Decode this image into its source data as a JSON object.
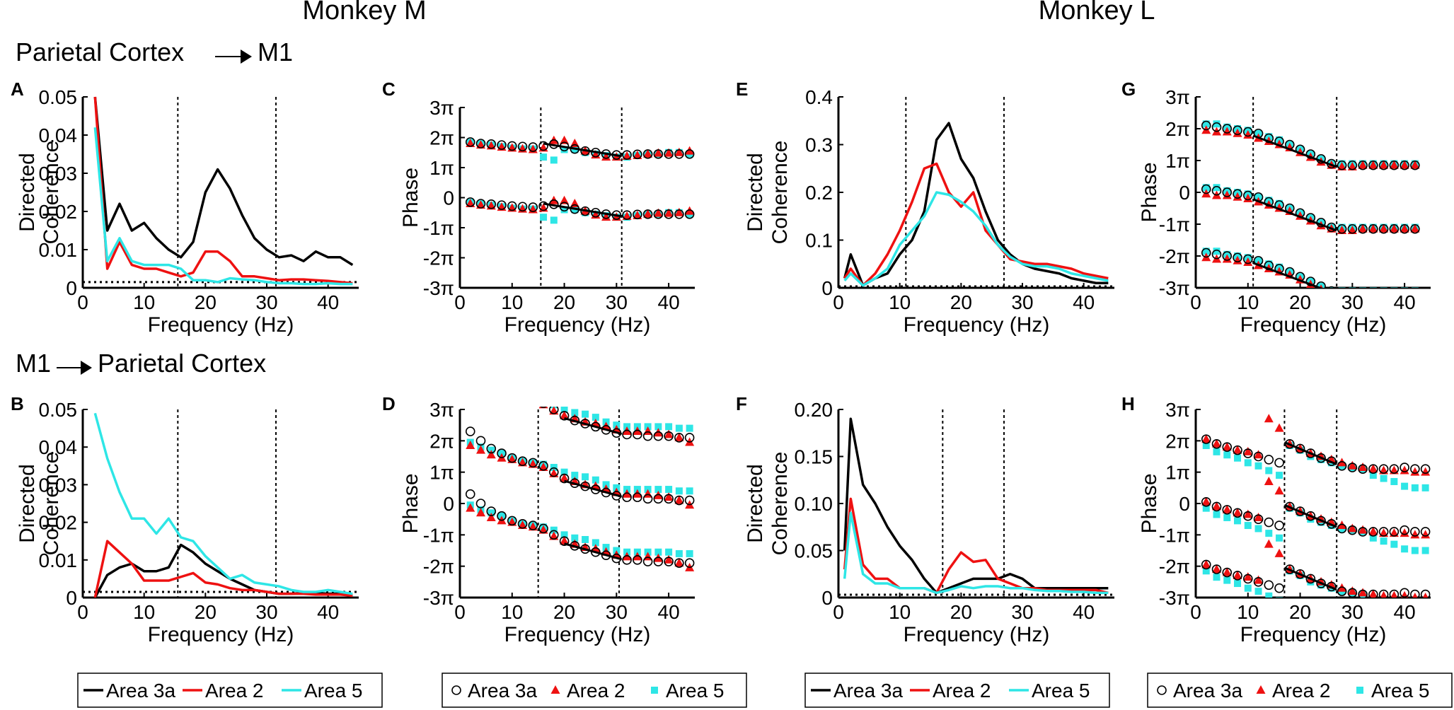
{
  "header": {
    "monkey_m": "Monkey M",
    "monkey_l": "Monkey L",
    "row1": "Parietal Cortex",
    "row1_target": "M1",
    "row2_source": "M1",
    "row2": "Parietal Cortex"
  },
  "colors": {
    "area3a": "#000000",
    "area2": "#ee1111",
    "area5": "#2ee6e6"
  },
  "legends": {
    "lines": [
      "Area 3a",
      "Area 2",
      "Area 5"
    ],
    "markers": [
      "Area 3a",
      "Area 2",
      "Area 5"
    ]
  },
  "chart_data": [
    {
      "id": "A",
      "type": "line",
      "xlabel": "Frequency (Hz)",
      "ylabel": [
        "Directed",
        "Coherence"
      ],
      "xlim": [
        0,
        45
      ],
      "ylim": [
        0,
        0.05
      ],
      "xticks": [
        0,
        10,
        20,
        30,
        40
      ],
      "xtick_labels": [
        "0",
        "10",
        "20",
        "30",
        "40"
      ],
      "yticks": [
        0,
        0.01,
        0.02,
        0.03,
        0.04,
        0.05
      ],
      "ytick_labels": [
        "0",
        "0.01",
        "0.02",
        "0.03",
        "0.04",
        "0.05"
      ],
      "vlines": [
        15.5,
        31.5
      ],
      "baseline": 0.0015,
      "x": [
        2,
        4,
        6,
        8,
        10,
        12,
        14,
        16,
        18,
        20,
        22,
        24,
        26,
        28,
        30,
        32,
        34,
        36,
        38,
        40,
        42,
        44
      ],
      "series": [
        {
          "name": "Area 3a",
          "values": [
            0.05,
            0.015,
            0.022,
            0.015,
            0.017,
            0.013,
            0.01,
            0.008,
            0.012,
            0.025,
            0.031,
            0.026,
            0.019,
            0.013,
            0.01,
            0.008,
            0.0085,
            0.007,
            0.0095,
            0.008,
            0.008,
            0.006
          ]
        },
        {
          "name": "Area 2",
          "values": [
            0.05,
            0.005,
            0.012,
            0.006,
            0.005,
            0.005,
            0.004,
            0.003,
            0.004,
            0.0095,
            0.0095,
            0.007,
            0.003,
            0.003,
            0.0025,
            0.002,
            0.0022,
            0.0022,
            0.002,
            0.0018,
            0.0015,
            0.0012
          ]
        },
        {
          "name": "Area 5",
          "values": [
            0.042,
            0.007,
            0.013,
            0.007,
            0.006,
            0.006,
            0.006,
            0.005,
            0.002,
            0.002,
            0.0015,
            0.0025,
            0.0022,
            0.002,
            0.0015,
            0.0012,
            0.0012,
            0.001,
            0.001,
            0.0012,
            0.001,
            0.001
          ]
        }
      ]
    },
    {
      "id": "B",
      "type": "line",
      "xlabel": "Frequency (Hz)",
      "ylabel": [
        "Directed",
        "Coherence"
      ],
      "xlim": [
        0,
        45
      ],
      "ylim": [
        0,
        0.05
      ],
      "xticks": [
        0,
        10,
        20,
        30,
        40
      ],
      "xtick_labels": [
        "0",
        "10",
        "20",
        "30",
        "40"
      ],
      "yticks": [
        0,
        0.01,
        0.02,
        0.03,
        0.04,
        0.05
      ],
      "ytick_labels": [
        "0",
        "0.01",
        "0.02",
        "0.03",
        "0.04",
        "0.05"
      ],
      "vlines": [
        15.5,
        31.5
      ],
      "baseline": 0.0015,
      "x": [
        2,
        4,
        6,
        8,
        10,
        12,
        14,
        16,
        18,
        20,
        22,
        24,
        26,
        28,
        30,
        32,
        34,
        36,
        38,
        40,
        42,
        44
      ],
      "series": [
        {
          "name": "Area 3a",
          "values": [
            0.0,
            0.006,
            0.008,
            0.009,
            0.007,
            0.007,
            0.008,
            0.014,
            0.012,
            0.009,
            0.007,
            0.005,
            0.0035,
            0.002,
            0.0015,
            0.001,
            0.001,
            0.0012,
            0.0012,
            0.001,
            0.001,
            0.0005
          ]
        },
        {
          "name": "Area 2",
          "values": [
            0.0,
            0.015,
            0.012,
            0.009,
            0.0045,
            0.0045,
            0.0045,
            0.0055,
            0.0065,
            0.004,
            0.0035,
            0.0025,
            0.002,
            0.002,
            0.0015,
            0.001,
            0.001,
            0.001,
            0.0008,
            0.0008,
            0.0008,
            0.0005
          ]
        },
        {
          "name": "Area 5",
          "values": [
            0.049,
            0.037,
            0.028,
            0.021,
            0.021,
            0.017,
            0.021,
            0.016,
            0.015,
            0.011,
            0.008,
            0.005,
            0.006,
            0.004,
            0.0035,
            0.003,
            0.002,
            0.0015,
            0.0015,
            0.002,
            0.0015,
            0.001
          ]
        }
      ]
    },
    {
      "id": "E",
      "type": "line",
      "xlabel": "Frequency (Hz)",
      "ylabel": [
        "Directed",
        "Coherence"
      ],
      "xlim": [
        0,
        45
      ],
      "ylim": [
        0,
        0.4
      ],
      "xticks": [
        0,
        10,
        20,
        30,
        40
      ],
      "xtick_labels": [
        "0",
        "10",
        "20",
        "30",
        "40"
      ],
      "yticks": [
        0,
        0.1,
        0.2,
        0.3,
        0.4
      ],
      "ytick_labels": [
        "0",
        "0.1",
        "0.2",
        "0.3",
        "0.4"
      ],
      "vlines": [
        11,
        27
      ],
      "baseline": 0.003,
      "x": [
        1,
        2,
        4,
        6,
        8,
        10,
        12,
        14,
        16,
        18,
        20,
        22,
        24,
        26,
        28,
        30,
        32,
        34,
        36,
        38,
        40,
        42,
        44
      ],
      "series": [
        {
          "name": "Area 3a",
          "values": [
            0.02,
            0.07,
            0.005,
            0.02,
            0.03,
            0.07,
            0.1,
            0.16,
            0.31,
            0.345,
            0.27,
            0.23,
            0.16,
            0.1,
            0.07,
            0.05,
            0.04,
            0.035,
            0.03,
            0.02,
            0.015,
            0.01,
            0.01
          ]
        },
        {
          "name": "Area 2",
          "values": [
            0.02,
            0.04,
            0.005,
            0.03,
            0.07,
            0.12,
            0.18,
            0.25,
            0.26,
            0.2,
            0.17,
            0.2,
            0.12,
            0.09,
            0.06,
            0.055,
            0.05,
            0.05,
            0.045,
            0.04,
            0.03,
            0.025,
            0.02
          ]
        },
        {
          "name": "Area 5",
          "values": [
            0.015,
            0.03,
            0.005,
            0.02,
            0.04,
            0.09,
            0.12,
            0.15,
            0.2,
            0.195,
            0.18,
            0.16,
            0.13,
            0.09,
            0.065,
            0.05,
            0.045,
            0.045,
            0.04,
            0.03,
            0.025,
            0.02,
            0.015
          ]
        }
      ]
    },
    {
      "id": "F",
      "type": "line",
      "xlabel": "Frequency (Hz)",
      "ylabel": [
        "Directed",
        "Coherence"
      ],
      "xlim": [
        0,
        45
      ],
      "ylim": [
        0,
        0.2
      ],
      "xticks": [
        0,
        10,
        20,
        30,
        40
      ],
      "xtick_labels": [
        "0",
        "10",
        "20",
        "30",
        "40"
      ],
      "yticks": [
        0,
        0.05,
        0.1,
        0.15,
        0.2
      ],
      "ytick_labels": [
        "0",
        "0.05",
        "0.10",
        "0.15",
        "0.20"
      ],
      "vlines": [
        17,
        27
      ],
      "baseline": 0.003,
      "x": [
        1,
        2,
        4,
        6,
        8,
        10,
        12,
        14,
        16,
        18,
        20,
        22,
        24,
        26,
        28,
        30,
        32,
        34,
        36,
        38,
        40,
        42,
        44
      ],
      "series": [
        {
          "name": "Area 3a",
          "values": [
            0.05,
            0.19,
            0.12,
            0.1,
            0.075,
            0.055,
            0.04,
            0.02,
            0.005,
            0.01,
            0.015,
            0.02,
            0.02,
            0.02,
            0.025,
            0.02,
            0.01,
            0.01,
            0.01,
            0.01,
            0.01,
            0.01,
            0.01
          ]
        },
        {
          "name": "Area 2",
          "values": [
            0.03,
            0.105,
            0.035,
            0.02,
            0.02,
            0.01,
            0.01,
            0.01,
            0.005,
            0.03,
            0.048,
            0.038,
            0.04,
            0.02,
            0.015,
            0.01,
            0.01,
            0.008,
            0.008,
            0.008,
            0.008,
            0.008,
            0.005
          ]
        },
        {
          "name": "Area 5",
          "values": [
            0.02,
            0.09,
            0.025,
            0.015,
            0.015,
            0.01,
            0.01,
            0.01,
            0.005,
            0.008,
            0.012,
            0.01,
            0.012,
            0.012,
            0.01,
            0.01,
            0.008,
            0.007,
            0.007,
            0.006,
            0.006,
            0.005,
            0.005
          ]
        }
      ]
    },
    {
      "id": "C",
      "type": "scatter",
      "xlabel": "Frequency (Hz)",
      "ylabel": "Phase",
      "y_unit": "pi",
      "xlim": [
        0,
        45
      ],
      "ylim": [
        -3,
        3
      ],
      "xticks": [
        0,
        10,
        20,
        30,
        40
      ],
      "xtick_labels": [
        "0",
        "10",
        "20",
        "30",
        "40"
      ],
      "yticks": [
        -3,
        -2,
        -1,
        0,
        1,
        2,
        3
      ],
      "ytick_labels": [
        "-3π",
        "-2π",
        "-1π",
        "0",
        "1π",
        "2π",
        "3π"
      ],
      "vlines": [
        15.5,
        31
      ],
      "x": [
        2,
        4,
        6,
        8,
        10,
        12,
        14,
        16,
        18,
        20,
        22,
        24,
        26,
        28,
        30,
        32,
        34,
        36,
        38,
        40,
        42,
        44
      ],
      "area3a": [
        1.85,
        1.8,
        1.78,
        1.75,
        1.72,
        1.7,
        1.68,
        1.72,
        1.78,
        1.7,
        1.62,
        1.55,
        1.5,
        1.45,
        1.42,
        1.42,
        1.44,
        1.45,
        1.45,
        1.45,
        1.45,
        1.45
      ],
      "area2": [
        1.8,
        1.75,
        1.72,
        1.68,
        1.65,
        1.62,
        1.6,
        1.65,
        1.9,
        1.9,
        1.8,
        1.55,
        1.42,
        1.35,
        1.35,
        1.38,
        1.4,
        1.45,
        1.48,
        1.48,
        1.5,
        1.55
      ],
      "area5": [
        1.85,
        1.8,
        1.75,
        1.7,
        1.65,
        1.62,
        1.62,
        1.35,
        1.25,
        1.6,
        1.6,
        1.5,
        1.45,
        1.4,
        1.35,
        1.35,
        1.4,
        1.45,
        1.45,
        1.5,
        1.5,
        1.45
      ],
      "fits": [
        {
          "x": [
            16,
            31
          ],
          "y": [
            1.8,
            1.38
          ]
        }
      ]
    },
    {
      "id": "D",
      "type": "scatter",
      "xlabel": "Frequency (Hz)",
      "ylabel": "Phase",
      "y_unit": "pi",
      "xlim": [
        0,
        45
      ],
      "ylim": [
        -3,
        3
      ],
      "xticks": [
        0,
        10,
        20,
        30,
        40
      ],
      "xtick_labels": [
        "0",
        "10",
        "20",
        "30",
        "40"
      ],
      "yticks": [
        -3,
        -2,
        -1,
        0,
        1,
        2,
        3
      ],
      "ytick_labels": [
        "-3π",
        "-2π",
        "-1π",
        "0",
        "1π",
        "2π",
        "3π"
      ],
      "vlines": [
        15,
        30.5
      ],
      "x": [
        2,
        4,
        6,
        8,
        10,
        12,
        14,
        16,
        18,
        20,
        22,
        24,
        26,
        28,
        30,
        32,
        34,
        36,
        38,
        40,
        42,
        44
      ],
      "area3a": [
        2.3,
        2.0,
        1.75,
        1.6,
        1.45,
        1.35,
        1.3,
        1.2,
        1.0,
        0.8,
        0.65,
        0.55,
        0.45,
        0.35,
        0.25,
        0.2,
        0.2,
        0.15,
        0.15,
        0.15,
        0.1,
        0.1
      ],
      "area2": [
        1.85,
        1.7,
        1.55,
        1.45,
        1.4,
        1.3,
        1.25,
        1.15,
        0.95,
        0.8,
        0.7,
        0.6,
        0.55,
        0.45,
        0.35,
        0.3,
        0.3,
        0.3,
        0.25,
        0.2,
        0.1,
        -0.05
      ],
      "area5": [
        1.95,
        1.8,
        1.7,
        1.6,
        1.45,
        1.35,
        1.3,
        1.25,
        1.15,
        1.0,
        0.9,
        0.85,
        0.75,
        0.6,
        0.5,
        0.45,
        0.45,
        0.45,
        0.45,
        0.45,
        0.4,
        0.4
      ],
      "fits": [
        {
          "x": [
            20,
            31
          ],
          "y": [
            0.72,
            0.22
          ]
        }
      ]
    },
    {
      "id": "G",
      "type": "scatter",
      "xlabel": "Frequency (Hz)",
      "ylabel": "Phase",
      "y_unit": "pi",
      "xlim": [
        0,
        45
      ],
      "ylim": [
        -3,
        3
      ],
      "xticks": [
        0,
        10,
        20,
        30,
        40
      ],
      "xtick_labels": [
        "0",
        "10",
        "20",
        "30",
        "40"
      ],
      "yticks": [
        -3,
        -2,
        -1,
        0,
        1,
        2,
        3
      ],
      "ytick_labels": [
        "-3π",
        "-2π",
        "-1π",
        "0",
        "1π",
        "2π",
        "3π"
      ],
      "vlines": [
        11,
        27
      ],
      "x": [
        2,
        4,
        6,
        8,
        10,
        12,
        14,
        16,
        18,
        20,
        22,
        24,
        26,
        28,
        30,
        32,
        34,
        36,
        38,
        40,
        42
      ],
      "area3a": [
        0.1,
        0.05,
        0.0,
        -0.05,
        -0.1,
        -0.15,
        -0.3,
        -0.4,
        -0.5,
        -0.65,
        -0.8,
        -0.95,
        -1.1,
        -1.15,
        -1.15,
        -1.15,
        -1.15,
        -1.15,
        -1.15,
        -1.15,
        -1.15
      ],
      "area2": [
        -0.05,
        -0.1,
        -0.1,
        -0.15,
        -0.2,
        -0.3,
        -0.4,
        -0.5,
        -0.6,
        -0.75,
        -0.9,
        -1.05,
        -1.15,
        -1.2,
        -1.2,
        -1.15,
        -1.15,
        -1.15,
        -1.15,
        -1.15,
        -1.15
      ],
      "area5": [
        0.15,
        0.15,
        0.05,
        0.0,
        -0.05,
        -0.15,
        -0.25,
        -0.35,
        -0.5,
        -0.65,
        -0.8,
        -0.95,
        -1.1,
        -1.1,
        -1.1,
        -1.1,
        -1.1,
        -1.1,
        -1.1,
        -1.1,
        -1.1
      ],
      "fits": [
        {
          "x": [
            11,
            27
          ],
          "y": [
            -0.22,
            -1.2
          ]
        }
      ]
    },
    {
      "id": "H",
      "type": "scatter",
      "xlabel": "Frequency (Hz)",
      "ylabel": "Phase",
      "y_unit": "pi",
      "xlim": [
        0,
        45
      ],
      "ylim": [
        -3,
        3
      ],
      "xticks": [
        0,
        10,
        20,
        30,
        40
      ],
      "xtick_labels": [
        "0",
        "10",
        "20",
        "30",
        "40"
      ],
      "yticks": [
        -3,
        -2,
        -1,
        0,
        1,
        2,
        3
      ],
      "ytick_labels": [
        "-3π",
        "-2π",
        "-1π",
        "0",
        "1π",
        "2π",
        "3π"
      ],
      "vlines": [
        17,
        27
      ],
      "x": [
        2,
        4,
        6,
        8,
        10,
        12,
        14,
        16,
        18,
        20,
        22,
        24,
        26,
        28,
        30,
        32,
        34,
        36,
        38,
        40,
        42,
        44
      ],
      "area3a": [
        0.05,
        -0.1,
        -0.2,
        -0.3,
        -0.4,
        -0.5,
        -0.6,
        -0.7,
        -0.1,
        -0.25,
        -0.4,
        -0.55,
        -0.65,
        -0.8,
        -0.85,
        -0.9,
        -0.9,
        -0.9,
        -0.9,
        -0.85,
        -0.9,
        -0.9
      ],
      "area2": [
        0.05,
        -0.1,
        -0.2,
        -0.3,
        -0.35,
        -0.45,
        0.7,
        0.4,
        -0.1,
        -0.25,
        -0.4,
        -0.5,
        -0.6,
        -0.7,
        -0.8,
        -0.85,
        -0.9,
        -0.95,
        -0.95,
        -0.95,
        -1.0,
        -1.0
      ],
      "area5": [
        -0.15,
        -0.35,
        -0.45,
        -0.55,
        -0.7,
        -0.8,
        -0.95,
        -1.1,
        -0.15,
        -0.3,
        -0.5,
        -0.6,
        -0.7,
        -0.8,
        -0.85,
        -0.9,
        -1.1,
        -1.2,
        -1.3,
        -1.45,
        -1.5,
        -1.5
      ],
      "fits": [
        {
          "x": [
            17,
            27
          ],
          "y": [
            -0.05,
            -0.75
          ]
        }
      ]
    }
  ]
}
